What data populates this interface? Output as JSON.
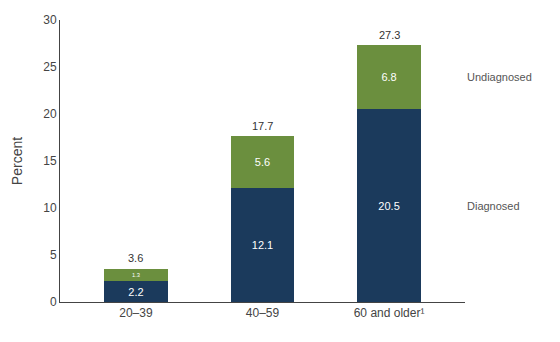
{
  "chart_data": {
    "type": "bar",
    "categories": [
      "20–39",
      "40–59",
      "60 and older¹"
    ],
    "series": [
      {
        "name": "Diagnosed",
        "color": "#1b3a5c",
        "values": [
          2.2,
          12.1,
          20.5
        ]
      },
      {
        "name": "Undiagnosed",
        "color": "#6b8f3e",
        "values": [
          1.3,
          5.6,
          6.8
        ]
      }
    ],
    "totals": [
      3.6,
      17.7,
      27.3
    ],
    "ylabel": "Percent",
    "ylim": [
      0,
      30
    ],
    "yticks": [
      0,
      5,
      10,
      15,
      20,
      25,
      30
    ],
    "stacked": true,
    "data_labels": true,
    "grid": false
  }
}
